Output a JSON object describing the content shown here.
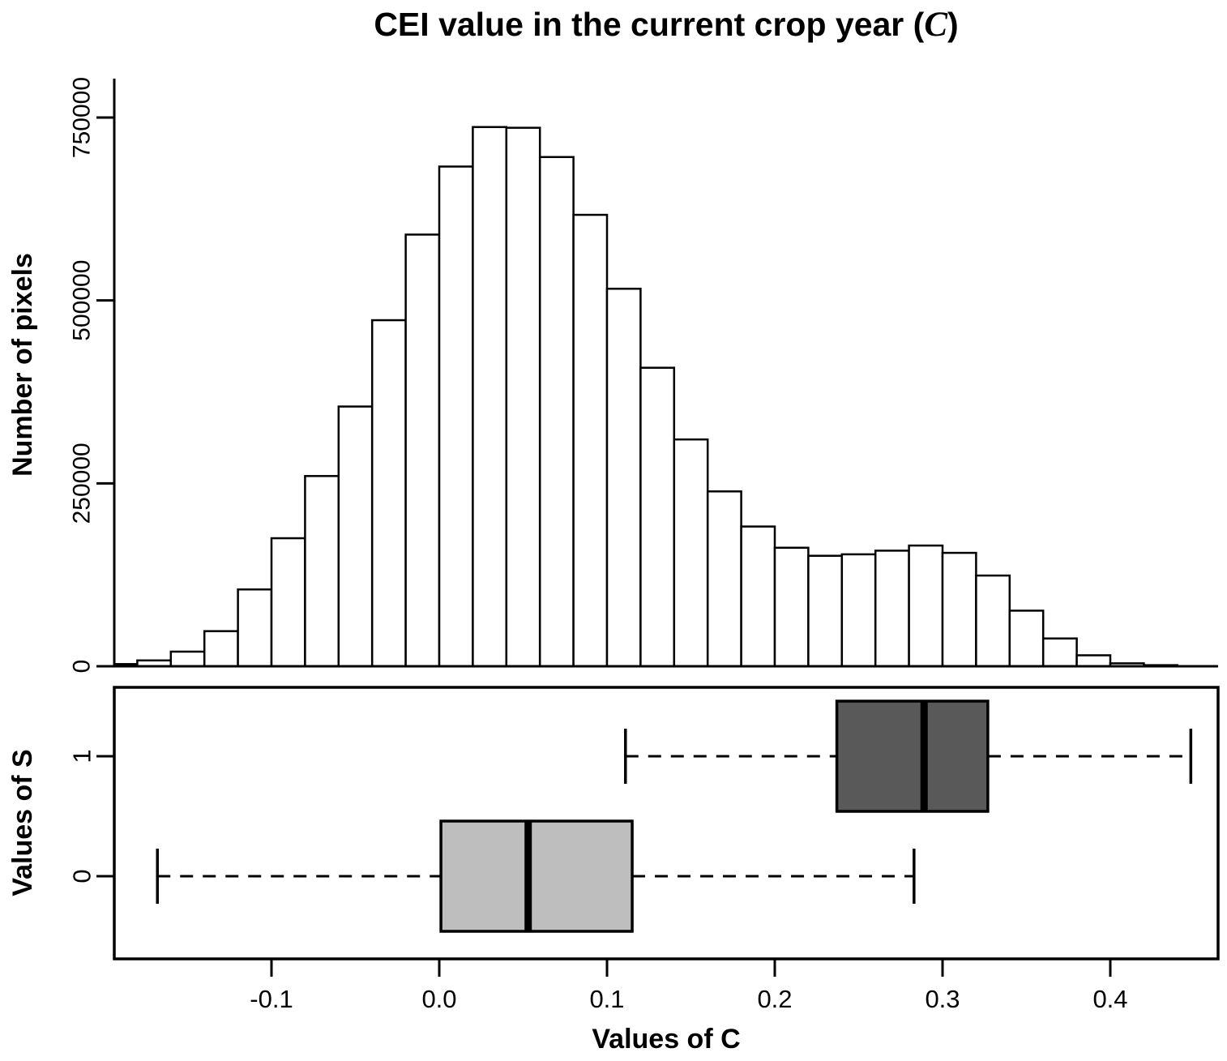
{
  "title": {
    "prefix": "CEI value in the current crop year (",
    "var": "C",
    "suffix": ")"
  },
  "chart_data": [
    {
      "type": "bar",
      "subtype": "histogram",
      "title": "CEI value in the current crop year (C)",
      "ylabel": "Number of pixels",
      "xlim": [
        -0.194,
        0.464
      ],
      "ylim": [
        0,
        803000
      ],
      "grid": false,
      "bar_fill": "#ffffff",
      "bar_stroke": "#000000",
      "bin_width": 0.02,
      "bin_starts": [
        -0.2,
        -0.18,
        -0.16,
        -0.14,
        -0.12,
        -0.1,
        -0.08,
        -0.06,
        -0.04,
        -0.02,
        0.0,
        0.02,
        0.04,
        0.06,
        0.08,
        0.1,
        0.12,
        0.14,
        0.16,
        0.18,
        0.2,
        0.22,
        0.24,
        0.26,
        0.28,
        0.3,
        0.32,
        0.34,
        0.36,
        0.38,
        0.4,
        0.42
      ],
      "counts": [
        3000,
        8000,
        20000,
        48000,
        105000,
        175000,
        260000,
        355000,
        473000,
        590000,
        683000,
        737000,
        736000,
        696000,
        617000,
        516000,
        408000,
        310000,
        239000,
        191000,
        162000,
        151000,
        153000,
        158000,
        165000,
        155000,
        124000,
        76000,
        38000,
        15000,
        4000,
        1500
      ],
      "yticks": {
        "values": [
          0,
          250000,
          500000,
          750000
        ],
        "labels": [
          "0",
          "250000",
          "500000",
          "750000"
        ]
      }
    },
    {
      "type": "boxplot",
      "orientation": "horizontal",
      "xlabel": "Values of C",
      "ylabel": "Values of S",
      "xlim": [
        -0.194,
        0.464
      ],
      "xticks": {
        "values": [
          -0.1,
          0.0,
          0.1,
          0.2,
          0.3,
          0.4
        ],
        "labels": [
          "-0.1",
          "0.0",
          "0.1",
          "0.2",
          "0.3",
          "0.4"
        ]
      },
      "groups": [
        {
          "label": "0",
          "whisker_low": -0.168,
          "q1": 0.001,
          "median": 0.053,
          "q3": 0.115,
          "whisker_high": 0.283,
          "fill": "#bebebe"
        },
        {
          "label": "1",
          "whisker_low": 0.111,
          "q1": 0.237,
          "median": 0.289,
          "q3": 0.327,
          "whisker_high": 0.448,
          "fill": "#595959"
        }
      ],
      "box_stroke": "#000000",
      "median_color": "#000000"
    }
  ]
}
